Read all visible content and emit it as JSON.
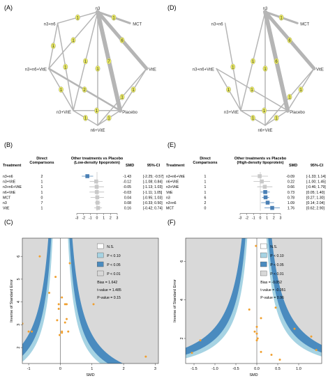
{
  "panels": {
    "A": {
      "label": "(A)",
      "nodes": [
        "n3",
        "MCT",
        "n3+n6",
        "n3+n6+VitE",
        "VitE",
        "n3+VitE",
        "Placebo",
        "n6+VitE"
      ],
      "edges": [
        {
          "from": "n3",
          "to": "MCT",
          "n": "1",
          "w": 3
        },
        {
          "from": "n3",
          "to": "n3+n6",
          "n": "1",
          "w": 1.5
        },
        {
          "from": "n3",
          "to": "n3+n6+VitE",
          "n": "1",
          "w": 1.5
        },
        {
          "from": "n3",
          "to": "VitE",
          "n": "6",
          "w": 5
        },
        {
          "from": "n3",
          "to": "n3+VitE",
          "n": "1",
          "w": 1.5
        },
        {
          "from": "n3",
          "to": "Placebo",
          "n": "7",
          "w": 6
        },
        {
          "from": "n3",
          "to": "n6+VitE",
          "n": "1",
          "w": 1.5
        },
        {
          "from": "n3+n6",
          "to": "n3+n6+VitE",
          "n": "1",
          "w": 1.5
        },
        {
          "from": "n3+n6",
          "to": "n3+VitE",
          "n": "1",
          "w": 1.5
        },
        {
          "from": "n3+n6+VitE",
          "to": "Placebo",
          "n": "2",
          "w": 2.5
        },
        {
          "from": "n3+n6+VitE",
          "to": "n3+VitE",
          "n": "1",
          "w": 1.5
        },
        {
          "from": "VitE",
          "to": "Placebo",
          "n": "1",
          "w": 1.5
        },
        {
          "from": "VitE",
          "to": "n6+VitE",
          "n": "1",
          "w": 1.5
        },
        {
          "from": "n3+VitE",
          "to": "Placebo",
          "n": "1",
          "w": 1.5
        },
        {
          "from": "n3+VitE",
          "to": "n6+VitE",
          "n": "1",
          "w": 1.5
        },
        {
          "from": "Placebo",
          "to": "n6+VitE",
          "n": "1",
          "w": 1.5
        }
      ]
    },
    "D": {
      "label": "(D)",
      "nodes": [
        "n3",
        "MCT",
        "n3+n6",
        "n3+n6+VitE",
        "VitE",
        "n3+VitE",
        "Placebo",
        "n6+VitE"
      ],
      "edges": [
        {
          "from": "n3",
          "to": "MCT",
          "n": "1",
          "w": 3
        },
        {
          "from": "n3",
          "to": "VitE",
          "n": "6",
          "w": 5
        },
        {
          "from": "n3",
          "to": "n3+VitE",
          "n": "1",
          "w": 1.5
        },
        {
          "from": "n3",
          "to": "Placebo",
          "n": "6",
          "w": 6
        },
        {
          "from": "n3",
          "to": "n6+VitE",
          "n": "1",
          "w": 1.5
        },
        {
          "from": "n3+n6",
          "to": "n3+VitE",
          "n": "1",
          "w": 1.5
        },
        {
          "from": "n3+n6+VitE",
          "to": "Placebo",
          "n": "1",
          "w": 1.5
        },
        {
          "from": "n3+n6+VitE",
          "to": "n3+VitE",
          "n": "1",
          "w": 1.5
        },
        {
          "from": "VitE",
          "to": "Placebo",
          "n": "1",
          "w": 1.5
        },
        {
          "from": "VitE",
          "to": "n6+VitE",
          "n": "1",
          "w": 1.5
        },
        {
          "from": "n3+VitE",
          "to": "Placebo",
          "n": "1",
          "w": 1.5
        },
        {
          "from": "n3+VitE",
          "to": "n6+VitE",
          "n": "1",
          "w": 1.5
        },
        {
          "from": "Placebo",
          "to": "n6+VitE",
          "n": "1",
          "w": 1.5
        }
      ]
    },
    "B": {
      "label": "(B)",
      "col_treatment": "Treatment",
      "col_direct": "Direct\nComparisons",
      "col_title": "Other treatments vs Placebo\n(Low-density lipoprotein)",
      "col_smd": "SMD",
      "col_ci": "95%-CI",
      "rows": [
        {
          "t": "n3+n6",
          "d": "2",
          "smd": -1.43,
          "lo": -2.25,
          "hi": -0.57,
          "smd_txt": "-1.43",
          "ci": "[-2.25; -0.57]",
          "hl": true
        },
        {
          "t": "n3+VitE",
          "d": "1",
          "smd": -0.12,
          "lo": -1.08,
          "hi": 0.84,
          "smd_txt": "-0.12",
          "ci": "[-1.08; 0.84]",
          "hl": false
        },
        {
          "t": "n3+n6+VitE",
          "d": "1",
          "smd": -0.05,
          "lo": -1.13,
          "hi": 1.03,
          "smd_txt": "-0.05",
          "ci": "[-1.13; 1.03]",
          "hl": false
        },
        {
          "t": "n6+VitE",
          "d": "1",
          "smd": -0.03,
          "lo": -1.11,
          "hi": 1.05,
          "smd_txt": "-0.03",
          "ci": "[-1.11; 1.05]",
          "hl": false
        },
        {
          "t": "MCT",
          "d": "0",
          "smd": 0.04,
          "lo": -0.95,
          "hi": 1.03,
          "smd_txt": "0.04",
          "ci": "[-0.95; 1.03]",
          "hl": false
        },
        {
          "t": "n3",
          "d": "7",
          "smd": 0.08,
          "lo": -0.33,
          "hi": 0.5,
          "smd_txt": "0.08",
          "ci": "[-0.33; 0.50]",
          "hl": false
        },
        {
          "t": "VitE",
          "d": "1",
          "smd": 0.16,
          "lo": -0.42,
          "hi": 0.74,
          "smd_txt": "0.16",
          "ci": "[-0.42; 0.74]",
          "hl": false
        }
      ],
      "axis_ticks": [
        "-3",
        "-2",
        "-1",
        "0",
        "1",
        "2",
        "3"
      ],
      "xlim": [
        -3,
        3
      ]
    },
    "E": {
      "label": "(E)",
      "col_treatment": "Treatment",
      "col_direct": "Direct\nComparisons",
      "col_title": "Other treatments vs Placebo\n(High-density lipoprotein)",
      "col_smd": "SMD",
      "col_ci": "95%-CI",
      "rows": [
        {
          "t": "n3+n6+VitE",
          "d": "1",
          "smd": -0.09,
          "lo": -1.33,
          "hi": 1.14,
          "smd_txt": "-0.09",
          "ci": "[-1.33; 1.14]",
          "hl": false
        },
        {
          "t": "n6+VitE",
          "d": "1",
          "smd": 0.22,
          "lo": -1.0,
          "hi": 1.45,
          "smd_txt": "0.22",
          "ci": "[-1.00; 1.45]",
          "hl": false
        },
        {
          "t": "n3+VitE",
          "d": "1",
          "smd": 0.66,
          "lo": -0.46,
          "hi": 1.79,
          "smd_txt": "0.66",
          "ci": "[-0.46; 1.79]",
          "hl": false
        },
        {
          "t": "VitE",
          "d": "1",
          "smd": 0.73,
          "lo": 0.05,
          "hi": 1.4,
          "smd_txt": "0.73",
          "ci": "[0.05; 1.40]",
          "hl": true
        },
        {
          "t": "n3",
          "d": "6",
          "smd": 0.78,
          "lo": 0.27,
          "hi": 1.3,
          "smd_txt": "0.78",
          "ci": "[0.27; 1.30]",
          "hl": true
        },
        {
          "t": "n3+n6",
          "d": "2",
          "smd": 1.09,
          "lo": 0.14,
          "hi": 2.04,
          "smd_txt": "1.09",
          "ci": "[0.14; 2.04]",
          "hl": true
        },
        {
          "t": "MCT",
          "d": "0",
          "smd": 1.76,
          "lo": 0.62,
          "hi": 2.9,
          "smd_txt": "1.76",
          "ci": "[0.62; 2.90]",
          "hl": true
        }
      ],
      "axis_ticks": [
        "-3",
        "-2",
        "-1",
        "0",
        "1",
        "2",
        "3"
      ],
      "xlim": [
        -3,
        3
      ]
    },
    "C": {
      "label": "(C)",
      "ylabel": "Inverse of Standard Error",
      "xlabel": "SMD",
      "xlim": [
        -1.2,
        3.1
      ],
      "ylim": [
        1.3,
        6.8
      ],
      "xticks": [
        "-1",
        "0",
        "1",
        "2",
        "3"
      ],
      "yticks": [
        "2",
        "3",
        "4",
        "5",
        "6"
      ],
      "legend": [
        "N.S.",
        "P < 0.10",
        "P < 0.05",
        "P < 0.01"
      ],
      "stats": [
        "Bias = 1.642",
        "t-value = 1.485",
        "P-value = 0.15"
      ],
      "points": [
        [
          -0.65,
          6.0
        ],
        [
          -0.35,
          4.4
        ],
        [
          -0.15,
          5.1
        ],
        [
          -0.05,
          3.7
        ],
        [
          -0.05,
          3.9
        ],
        [
          -0.02,
          2.55
        ],
        [
          0.05,
          2.65
        ],
        [
          -0.1,
          3.2
        ],
        [
          0.15,
          3.1
        ],
        [
          0.15,
          3.9
        ],
        [
          0.2,
          3.9
        ],
        [
          0.3,
          5.7
        ],
        [
          0.2,
          3.25
        ],
        [
          0.05,
          2.7
        ],
        [
          0.25,
          2.7
        ],
        [
          0.05,
          4.2
        ],
        [
          -1.0,
          2.7
        ],
        [
          -0.9,
          2.7
        ],
        [
          -1.2,
          3.05
        ],
        [
          1.05,
          3.9
        ],
        [
          2.7,
          1.6
        ]
      ]
    },
    "F": {
      "label": "(F)",
      "ylabel": "Inverse of Standard Error",
      "xlabel": "SMD",
      "xlim": [
        -1.7,
        1.55
      ],
      "ylim": [
        0.7,
        7.2
      ],
      "xticks": [
        "-1.5",
        "-1.0",
        "-0.5",
        "0.0",
        "0.5",
        "1.0"
      ],
      "yticks": [
        "2",
        "4",
        "6"
      ],
      "legend": [
        "N.S.",
        "P < 0.10",
        "P < 0.05",
        "P < 0.01"
      ],
      "stats": [
        "Bias = -0.052",
        "t-value = -0.051",
        "P-value = 0.96"
      ],
      "points": [
        [
          -0.02,
          6.8
        ],
        [
          -0.18,
          3.5
        ],
        [
          0.45,
          3.6
        ],
        [
          -1.35,
          1.9
        ],
        [
          0.1,
          1.3
        ],
        [
          -0.05,
          2.35
        ],
        [
          0.0,
          2.6
        ],
        [
          0.0,
          2.25
        ],
        [
          0.0,
          1.9
        ],
        [
          0.02,
          2.0
        ],
        [
          0.35,
          1.15
        ],
        [
          0.55,
          0.9
        ],
        [
          0.9,
          2.5
        ],
        [
          1.3,
          2.1
        ],
        [
          1.42,
          1.4
        ],
        [
          -1.55,
          1.25
        ],
        [
          0.1,
          3.05
        ]
      ]
    }
  },
  "colors": {
    "ns": "#ffffff",
    "p10": "#a6d3e3",
    "p05": "#4a8bbf",
    "p01": "#d8d8d8",
    "grey_bg": "#d9d9d9",
    "edge": "#b5b5b5",
    "label_yellow": "#e8e860",
    "point": "#f0a030",
    "forest_box": "#c9c9c9",
    "forest_hl": "#4a80b5"
  }
}
